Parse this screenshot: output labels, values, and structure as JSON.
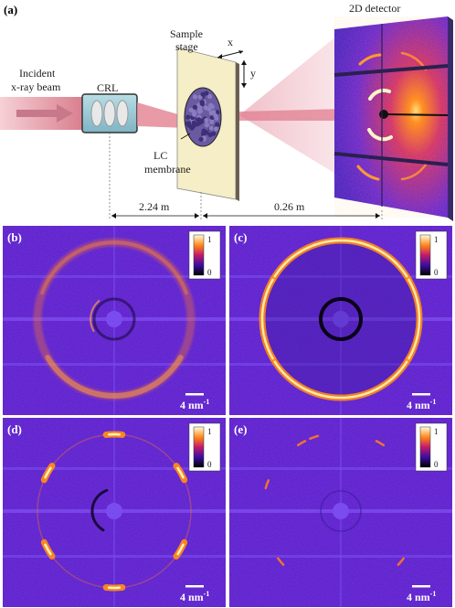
{
  "schematic": {
    "panel_label": "(a)",
    "beam_label_1": "Incident",
    "beam_label_2": "x-ray beam",
    "crl_label": "CRL",
    "stage_label_1": "Sample",
    "stage_label_2": "stage",
    "axis_x": "x",
    "axis_y": "y",
    "membrane_label_1": "LC",
    "membrane_label_2": "membrane",
    "detector_label": "2D detector",
    "dist_1": "2.24 m",
    "dist_2": "0.26 m"
  },
  "panels": [
    {
      "label": "(b)",
      "scale": "4 nm",
      "scale_exp": "-1",
      "cb_max": "1",
      "cb_min": "0"
    },
    {
      "label": "(c)",
      "scale": "4 nm",
      "scale_exp": "-1",
      "cb_max": "1",
      "cb_min": "0"
    },
    {
      "label": "(d)",
      "scale": "4 nm",
      "scale_exp": "-1",
      "cb_max": "1",
      "cb_min": "0"
    },
    {
      "label": "(e)",
      "scale": "4 nm",
      "scale_exp": "-1",
      "cb_max": "1",
      "cb_min": "0"
    }
  ],
  "colors": {
    "background_purple": "#5b1fd6",
    "ring_orange": "#ff8a1a",
    "beam_pink": "#e88a9a"
  }
}
